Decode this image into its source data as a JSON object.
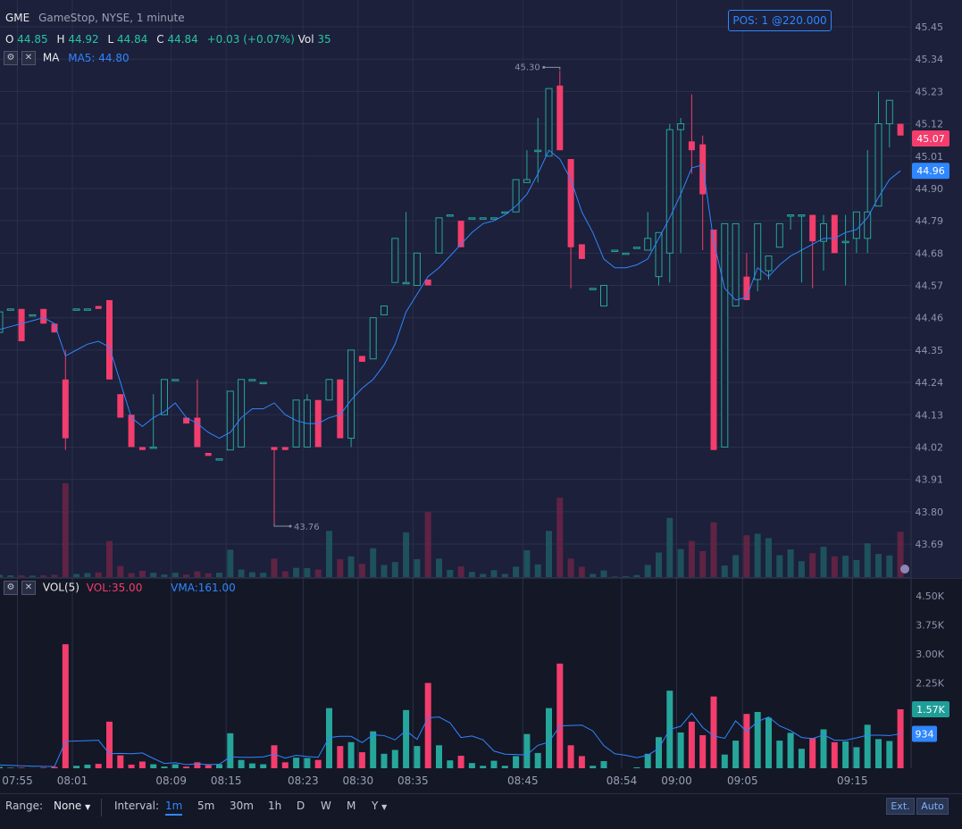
{
  "header": {
    "symbol": "GME",
    "description": "GameStop, NYSE, 1 minute",
    "o_label": "O",
    "o_value": "44.85",
    "h_label": "H",
    "h_value": "44.92",
    "l_label": "L",
    "l_value": "44.84",
    "c_label": "C",
    "c_value": "44.84",
    "change": "+0.03 (+0.07%)",
    "vol_label": "Vol",
    "vol_value": "35",
    "ma_label": "MA",
    "ma_value": "MA5: 44.80"
  },
  "position_badge": "POS: 1 @220.000",
  "price_axis": {
    "labels": [
      "45.45",
      "45.34",
      "45.23",
      "45.12",
      "45.01",
      "44.90",
      "44.79",
      "44.68",
      "44.57",
      "44.46",
      "44.35",
      "44.24",
      "44.13",
      "44.02",
      "43.91",
      "43.80",
      "43.69"
    ],
    "last_price": "45.07",
    "ma_price": "44.96"
  },
  "annotations": {
    "high": "45.30",
    "low": "43.76"
  },
  "volume_panel": {
    "title": "VOL(5)",
    "vol_value": "VOL:35.00",
    "vma_value": "VMA:161.00",
    "axis_labels": [
      "4.50K",
      "3.75K",
      "3.00K",
      "2.25K",
      "1.50K"
    ],
    "last_vol": "1.57K",
    "last_vma": "934"
  },
  "time_axis": [
    "07:55",
    "08:01",
    "08:09",
    "08:15",
    "08:23",
    "08:30",
    "08:35",
    "08:45",
    "08:54",
    "09:00",
    "09:05",
    "09:15"
  ],
  "bottom_bar": {
    "range_label": "Range:",
    "range_value": "None",
    "interval_label": "Interval:",
    "intervals": [
      "1m",
      "5m",
      "30m",
      "1h",
      "D",
      "W",
      "M",
      "Y"
    ],
    "active_interval": "1m",
    "ext_label": "Ext.",
    "auto_label": "Auto"
  },
  "colors": {
    "up": "#26a69a",
    "down": "#f23d6d",
    "ma": "#2f86ff",
    "background": "#1c203a"
  },
  "chart_data": {
    "type": "candlestick",
    "title": "GME",
    "ylim": [
      43.6,
      45.5
    ],
    "candles": [
      {
        "o": 44.41,
        "h": 44.5,
        "l": 44.41,
        "c": 44.48
      },
      {
        "o": 44.49,
        "h": 44.49,
        "l": 44.49,
        "c": 44.49
      },
      {
        "o": 44.49,
        "h": 44.49,
        "l": 44.38,
        "c": 44.38
      },
      {
        "o": 44.47,
        "h": 44.47,
        "l": 44.47,
        "c": 44.47
      },
      {
        "o": 44.49,
        "h": 44.49,
        "l": 44.44,
        "c": 44.44
      },
      {
        "o": 44.44,
        "h": 44.44,
        "l": 44.41,
        "c": 44.41
      },
      {
        "o": 44.25,
        "h": 44.35,
        "l": 44.01,
        "c": 44.05
      },
      {
        "o": 44.49,
        "h": 44.49,
        "l": 44.49,
        "c": 44.49
      },
      {
        "o": 44.49,
        "h": 44.49,
        "l": 44.49,
        "c": 44.49
      },
      {
        "o": 44.5,
        "h": 44.5,
        "l": 44.49,
        "c": 44.49
      },
      {
        "o": 44.52,
        "h": 44.52,
        "l": 44.25,
        "c": 44.25
      },
      {
        "o": 44.2,
        "h": 44.2,
        "l": 44.12,
        "c": 44.12
      },
      {
        "o": 44.13,
        "h": 44.13,
        "l": 44.02,
        "c": 44.02
      },
      {
        "o": 44.02,
        "h": 44.02,
        "l": 44.01,
        "c": 44.01
      },
      {
        "o": 44.02,
        "h": 44.2,
        "l": 44.02,
        "c": 44.02
      },
      {
        "o": 44.13,
        "h": 44.25,
        "l": 44.13,
        "c": 44.25
      },
      {
        "o": 44.25,
        "h": 44.25,
        "l": 44.25,
        "c": 44.25
      },
      {
        "o": 44.12,
        "h": 44.12,
        "l": 44.1,
        "c": 44.1
      },
      {
        "o": 44.12,
        "h": 44.25,
        "l": 44.02,
        "c": 44.02
      },
      {
        "o": 44.0,
        "h": 44.0,
        "l": 43.99,
        "c": 43.99
      },
      {
        "o": 43.98,
        "h": 43.98,
        "l": 43.98,
        "c": 43.98
      },
      {
        "o": 44.01,
        "h": 44.21,
        "l": 44.01,
        "c": 44.21
      },
      {
        "o": 44.02,
        "h": 44.25,
        "l": 44.02,
        "c": 44.25
      },
      {
        "o": 44.25,
        "h": 44.25,
        "l": 44.25,
        "c": 44.25
      },
      {
        "o": 44.24,
        "h": 44.24,
        "l": 44.24,
        "c": 44.24
      },
      {
        "o": 44.02,
        "h": 44.02,
        "l": 43.76,
        "c": 44.01
      },
      {
        "o": 44.02,
        "h": 44.02,
        "l": 44.01,
        "c": 44.01
      },
      {
        "o": 44.02,
        "h": 44.18,
        "l": 44.02,
        "c": 44.18
      },
      {
        "o": 44.02,
        "h": 44.2,
        "l": 44.02,
        "c": 44.18
      },
      {
        "o": 44.18,
        "h": 44.18,
        "l": 44.02,
        "c": 44.02
      },
      {
        "o": 44.18,
        "h": 44.25,
        "l": 44.18,
        "c": 44.25
      },
      {
        "o": 44.25,
        "h": 44.25,
        "l": 44.05,
        "c": 44.05
      },
      {
        "o": 44.05,
        "h": 44.35,
        "l": 44.02,
        "c": 44.35
      },
      {
        "o": 44.33,
        "h": 44.33,
        "l": 44.31,
        "c": 44.31
      },
      {
        "o": 44.32,
        "h": 44.46,
        "l": 44.32,
        "c": 44.46
      },
      {
        "o": 44.47,
        "h": 44.5,
        "l": 44.47,
        "c": 44.5
      },
      {
        "o": 44.58,
        "h": 44.73,
        "l": 44.58,
        "c": 44.73
      },
      {
        "o": 44.58,
        "h": 44.82,
        "l": 44.58,
        "c": 44.58
      },
      {
        "o": 44.57,
        "h": 44.68,
        "l": 44.57,
        "c": 44.68
      },
      {
        "o": 44.59,
        "h": 44.59,
        "l": 44.57,
        "c": 44.57
      },
      {
        "o": 44.68,
        "h": 44.8,
        "l": 44.68,
        "c": 44.8
      },
      {
        "o": 44.81,
        "h": 44.81,
        "l": 44.81,
        "c": 44.81
      },
      {
        "o": 44.79,
        "h": 44.79,
        "l": 44.7,
        "c": 44.7
      },
      {
        "o": 44.8,
        "h": 44.8,
        "l": 44.8,
        "c": 44.8
      },
      {
        "o": 44.8,
        "h": 44.8,
        "l": 44.8,
        "c": 44.8
      },
      {
        "o": 44.8,
        "h": 44.8,
        "l": 44.8,
        "c": 44.8
      },
      {
        "o": 44.82,
        "h": 44.82,
        "l": 44.82,
        "c": 44.82
      },
      {
        "o": 44.82,
        "h": 44.93,
        "l": 44.82,
        "c": 44.93
      },
      {
        "o": 44.92,
        "h": 45.03,
        "l": 44.92,
        "c": 44.93
      },
      {
        "o": 45.03,
        "h": 45.14,
        "l": 44.92,
        "c": 45.03
      },
      {
        "o": 45.01,
        "h": 45.24,
        "l": 45.01,
        "c": 45.24
      },
      {
        "o": 45.25,
        "h": 45.3,
        "l": 45.03,
        "c": 45.03
      },
      {
        "o": 45.0,
        "h": 45.0,
        "l": 44.56,
        "c": 44.7
      },
      {
        "o": 44.71,
        "h": 44.71,
        "l": 44.66,
        "c": 44.66
      },
      {
        "o": 44.56,
        "h": 44.56,
        "l": 44.56,
        "c": 44.56
      },
      {
        "o": 44.5,
        "h": 44.57,
        "l": 44.5,
        "c": 44.57
      },
      {
        "o": 44.69,
        "h": 44.69,
        "l": 44.69,
        "c": 44.69
      },
      {
        "o": 44.68,
        "h": 44.68,
        "l": 44.68,
        "c": 44.68
      },
      {
        "o": 44.7,
        "h": 44.7,
        "l": 44.7,
        "c": 44.7
      },
      {
        "o": 44.69,
        "h": 44.82,
        "l": 44.69,
        "c": 44.73
      },
      {
        "o": 44.6,
        "h": 44.75,
        "l": 44.57,
        "c": 44.75
      },
      {
        "o": 44.68,
        "h": 45.12,
        "l": 44.58,
        "c": 45.1
      },
      {
        "o": 45.1,
        "h": 45.14,
        "l": 44.68,
        "c": 45.12
      },
      {
        "o": 45.06,
        "h": 45.22,
        "l": 44.95,
        "c": 45.03
      },
      {
        "o": 45.05,
        "h": 45.08,
        "l": 44.69,
        "c": 44.88
      },
      {
        "o": 44.76,
        "h": 44.76,
        "l": 44.01,
        "c": 44.01
      },
      {
        "o": 44.02,
        "h": 44.78,
        "l": 44.02,
        "c": 44.78
      },
      {
        "o": 44.5,
        "h": 44.78,
        "l": 44.5,
        "c": 44.78
      },
      {
        "o": 44.6,
        "h": 44.68,
        "l": 44.52,
        "c": 44.52
      },
      {
        "o": 44.59,
        "h": 44.78,
        "l": 44.55,
        "c": 44.78
      },
      {
        "o": 44.62,
        "h": 44.67,
        "l": 44.59,
        "c": 44.67
      },
      {
        "o": 44.7,
        "h": 44.78,
        "l": 44.7,
        "c": 44.78
      },
      {
        "o": 44.81,
        "h": 44.81,
        "l": 44.76,
        "c": 44.81
      },
      {
        "o": 44.81,
        "h": 44.81,
        "l": 44.58,
        "c": 44.81
      },
      {
        "o": 44.81,
        "h": 44.81,
        "l": 44.56,
        "c": 44.72
      },
      {
        "o": 44.72,
        "h": 44.81,
        "l": 44.62,
        "c": 44.78
      },
      {
        "o": 44.81,
        "h": 44.81,
        "l": 44.68,
        "c": 44.68
      },
      {
        "o": 44.72,
        "h": 44.81,
        "l": 44.57,
        "c": 44.72
      },
      {
        "o": 44.73,
        "h": 44.82,
        "l": 44.68,
        "c": 44.82
      },
      {
        "o": 44.73,
        "h": 45.03,
        "l": 44.68,
        "c": 44.82
      },
      {
        "o": 44.84,
        "h": 45.23,
        "l": 44.84,
        "c": 45.12
      },
      {
        "o": 45.12,
        "h": 45.2,
        "l": 45.04,
        "c": 45.2
      },
      {
        "o": 45.12,
        "h": 45.12,
        "l": 45.08,
        "c": 45.08
      }
    ],
    "ma5": [
      44.42,
      44.43,
      44.44,
      44.45,
      44.46,
      44.44,
      44.33,
      44.35,
      44.37,
      44.38,
      44.36,
      44.24,
      44.12,
      44.09,
      44.12,
      44.14,
      44.17,
      44.12,
      44.1,
      44.07,
      44.05,
      44.07,
      44.12,
      44.15,
      44.15,
      44.17,
      44.13,
      44.11,
      44.1,
      44.1,
      44.12,
      44.13,
      44.18,
      44.22,
      44.25,
      44.3,
      44.37,
      44.48,
      44.54,
      44.6,
      44.63,
      44.67,
      44.71,
      44.75,
      44.78,
      44.79,
      44.81,
      44.84,
      44.88,
      44.95,
      45.03,
      45.0,
      44.93,
      44.82,
      44.75,
      44.66,
      44.63,
      44.63,
      44.64,
      44.66,
      44.73,
      44.8,
      44.88,
      44.97,
      44.98,
      44.72,
      44.56,
      44.52,
      44.53,
      44.63,
      44.6,
      44.64,
      44.67,
      44.69,
      44.71,
      44.73,
      44.73,
      44.75,
      44.76,
      44.8,
      44.87,
      44.93,
      44.96
    ],
    "volume": [
      80,
      60,
      60,
      50,
      60,
      80,
      3250,
      110,
      140,
      160,
      1250,
      380,
      140,
      220,
      150,
      90,
      150,
      90,
      200,
      130,
      150,
      950,
      260,
      170,
      150,
      640,
      200,
      320,
      310,
      260,
      1600,
      620,
      720,
      460,
      1000,
      420,
      520,
      1550,
      620,
      2250,
      640,
      250,
      370,
      180,
      110,
      240,
      110,
      360,
      930,
      440,
      1600,
      2750,
      640,
      360,
      110,
      230,
      20,
      30,
      70,
      420,
      850,
      2050,
      970,
      1250,
      900,
      1900,
      400,
      760,
      1450,
      1500,
      1350,
      760,
      960,
      550,
      830,
      1050,
      720,
      740,
      590,
      1170,
      800,
      750,
      1570
    ],
    "vma": [
      130,
      120,
      110,
      100,
      95,
      90,
      740,
      750,
      760,
      770,
      420,
      430,
      420,
      440,
      300,
      170,
      190,
      140,
      160,
      140,
      150,
      340,
      330,
      330,
      340,
      410,
      310,
      380,
      350,
      330,
      840,
      870,
      870,
      710,
      910,
      890,
      780,
      1020,
      790,
      1350,
      1370,
      1220,
      840,
      880,
      780,
      490,
      410,
      400,
      390,
      640,
      720,
      1140,
      1150,
      1160,
      1010,
      630,
      420,
      380,
      320,
      380,
      560,
      1050,
      1130,
      1470,
      1100,
      880,
      820,
      1270,
      1000,
      1250,
      1370,
      1140,
      1020,
      840,
      810,
      910,
      770,
      770,
      830,
      900,
      900,
      890,
      934
    ],
    "x_ticks": [
      "07:55",
      "08:01",
      "08:09",
      "08:15",
      "08:23",
      "08:30",
      "08:35",
      "08:45",
      "08:54",
      "09:00",
      "09:05",
      "09:15"
    ]
  }
}
